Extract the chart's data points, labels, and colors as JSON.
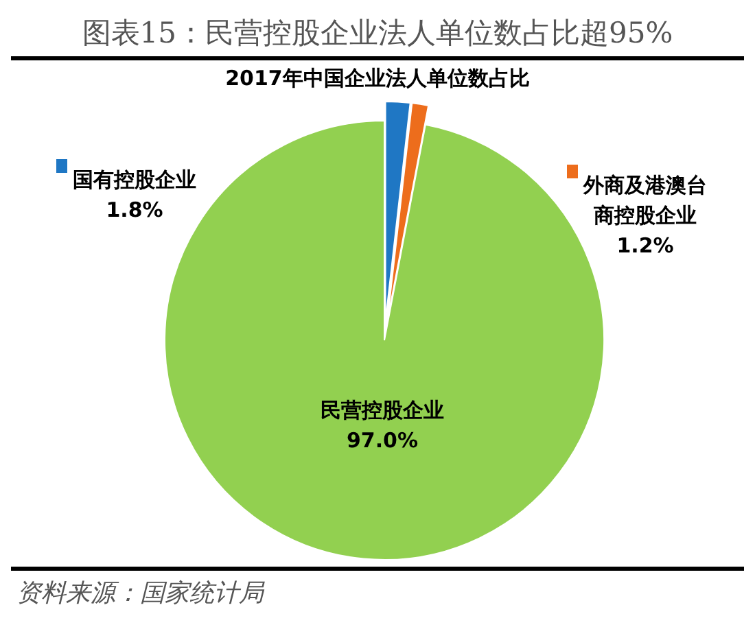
{
  "chart_data": {
    "type": "pie",
    "title": "图表15：民营控股企业法人单位数占比超95%",
    "subtitle": "2017年中国企业法人单位数占比",
    "categories": [
      "国有控股企业",
      "外商及港澳台商控股企业",
      "民营控股企业"
    ],
    "values": [
      1.8,
      1.2,
      97.0
    ],
    "colors": [
      "#1f77c4",
      "#ed6d1c",
      "#92d050"
    ],
    "value_labels": [
      "1.8%",
      "1.2%",
      "97.0%"
    ],
    "legend": "top left",
    "annotations": [
      "资料来源：国家统计局"
    ]
  }
}
